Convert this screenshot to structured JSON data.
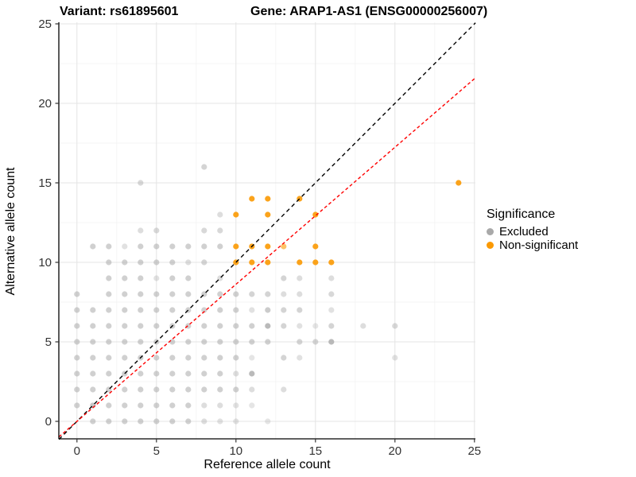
{
  "titles": {
    "variant": "Variant: rs61895601",
    "gene": "Gene: ARAP1-AS1 (ENSG00000256007)"
  },
  "legend": {
    "title": "Significance",
    "items": [
      {
        "label": "Excluded",
        "color": "#A9A9A9"
      },
      {
        "label": "Non-significant",
        "color": "#FB9902"
      }
    ]
  },
  "chart_data": {
    "type": "scatter",
    "xlabel": "Reference allele count",
    "ylabel": "Alternative allele count",
    "xlim": [
      -1.135,
      25.065
    ],
    "ylim": [
      -1.1,
      25.1
    ],
    "x_ticks": [
      0,
      5,
      10,
      15,
      20,
      25
    ],
    "y_ticks": [
      0,
      5,
      10,
      15,
      20,
      25
    ],
    "minor_ticks": [
      2.5,
      7.5,
      12.5,
      17.5,
      22.5
    ],
    "grid": "major+minor",
    "legend_position": "right",
    "series": [
      {
        "name": "Excluded",
        "color": "#A9A9A9",
        "default_alpha": 0.55,
        "points": [
          [
            1,
            0
          ],
          [
            2,
            0
          ],
          [
            3,
            0
          ],
          [
            4,
            0
          ],
          [
            5,
            0
          ],
          [
            6,
            0
          ],
          [
            7,
            0
          ],
          [
            8,
            0,
            0.4
          ],
          [
            9,
            0,
            0.35
          ],
          [
            10,
            0,
            0.35
          ],
          [
            12,
            0,
            0.3
          ],
          [
            0,
            1
          ],
          [
            1,
            1,
            0.65
          ],
          [
            2,
            1
          ],
          [
            3,
            1
          ],
          [
            4,
            1
          ],
          [
            5,
            1
          ],
          [
            6,
            1
          ],
          [
            7,
            1
          ],
          [
            8,
            1,
            0.4
          ],
          [
            9,
            1,
            0.4
          ],
          [
            10,
            1,
            0.35
          ],
          [
            11,
            1,
            0.3
          ],
          [
            0,
            2
          ],
          [
            1,
            2
          ],
          [
            2,
            2
          ],
          [
            3,
            2
          ],
          [
            4,
            2
          ],
          [
            5,
            2
          ],
          [
            6,
            2
          ],
          [
            7,
            2
          ],
          [
            8,
            2
          ],
          [
            9,
            2
          ],
          [
            10,
            2
          ],
          [
            11,
            2,
            0.4
          ],
          [
            13,
            2,
            0.4
          ],
          [
            0,
            3
          ],
          [
            1,
            3
          ],
          [
            2,
            3
          ],
          [
            3,
            3
          ],
          [
            4,
            3
          ],
          [
            5,
            3
          ],
          [
            6,
            3
          ],
          [
            7,
            3
          ],
          [
            8,
            3
          ],
          [
            9,
            3
          ],
          [
            10,
            3,
            0.4
          ],
          [
            11,
            3,
            0.8
          ],
          [
            0,
            4
          ],
          [
            1,
            4
          ],
          [
            2,
            4
          ],
          [
            3,
            4
          ],
          [
            4,
            4
          ],
          [
            5,
            4
          ],
          [
            6,
            4
          ],
          [
            7,
            4
          ],
          [
            8,
            4
          ],
          [
            9,
            4
          ],
          [
            10,
            4
          ],
          [
            11,
            4,
            0.3
          ],
          [
            13,
            4,
            0.5
          ],
          [
            14,
            4,
            0.35
          ],
          [
            20,
            4,
            0.35
          ],
          [
            0,
            5
          ],
          [
            1,
            5
          ],
          [
            2,
            5
          ],
          [
            3,
            5
          ],
          [
            4,
            5
          ],
          [
            5,
            5
          ],
          [
            6,
            5
          ],
          [
            7,
            5
          ],
          [
            8,
            5
          ],
          [
            9,
            5
          ],
          [
            10,
            5
          ],
          [
            11,
            5
          ],
          [
            12,
            5
          ],
          [
            14,
            5,
            0.5
          ],
          [
            15,
            5,
            0.5
          ],
          [
            16,
            5,
            0.8
          ],
          [
            0,
            6
          ],
          [
            1,
            6
          ],
          [
            2,
            6
          ],
          [
            3,
            6
          ],
          [
            4,
            6
          ],
          [
            5,
            6
          ],
          [
            6,
            6
          ],
          [
            7,
            6
          ],
          [
            8,
            6
          ],
          [
            9,
            6
          ],
          [
            10,
            6
          ],
          [
            11,
            6
          ],
          [
            12,
            6,
            0.8
          ],
          [
            13,
            6,
            0.5
          ],
          [
            14,
            6,
            0.35
          ],
          [
            15,
            6,
            0.3
          ],
          [
            16,
            6,
            0.5
          ],
          [
            18,
            6,
            0.4
          ],
          [
            20,
            6,
            0.45
          ],
          [
            0,
            7
          ],
          [
            1,
            7
          ],
          [
            2,
            7
          ],
          [
            3,
            7
          ],
          [
            4,
            7
          ],
          [
            5,
            7
          ],
          [
            6,
            7
          ],
          [
            7,
            7
          ],
          [
            8,
            7
          ],
          [
            9,
            7
          ],
          [
            10,
            7
          ],
          [
            11,
            7,
            0.35
          ],
          [
            12,
            7,
            0.6
          ],
          [
            13,
            7,
            0.5
          ],
          [
            14,
            7,
            0.5
          ],
          [
            16,
            7,
            0.35
          ],
          [
            0,
            8
          ],
          [
            2,
            8
          ],
          [
            3,
            8
          ],
          [
            4,
            8
          ],
          [
            5,
            8
          ],
          [
            6,
            8
          ],
          [
            7,
            8
          ],
          [
            8,
            8
          ],
          [
            9,
            8
          ],
          [
            10,
            8
          ],
          [
            11,
            8,
            0.5
          ],
          [
            12,
            8,
            0.5
          ],
          [
            13,
            8,
            0.4
          ],
          [
            14,
            8,
            0.4
          ],
          [
            16,
            8,
            0.45
          ],
          [
            2,
            9
          ],
          [
            3,
            9
          ],
          [
            4,
            9
          ],
          [
            5,
            9,
            0.35
          ],
          [
            6,
            9
          ],
          [
            7,
            9
          ],
          [
            9,
            9,
            0.4
          ],
          [
            13,
            9,
            0.5
          ],
          [
            14,
            9,
            0.4
          ],
          [
            16,
            9,
            0.4
          ],
          [
            2,
            10
          ],
          [
            3,
            10
          ],
          [
            4,
            10
          ],
          [
            5,
            10
          ],
          [
            6,
            10
          ],
          [
            7,
            10,
            0.4
          ],
          [
            8,
            10,
            0.5
          ],
          [
            1,
            11
          ],
          [
            2,
            11
          ],
          [
            3,
            11,
            0.35
          ],
          [
            4,
            11
          ],
          [
            5,
            11
          ],
          [
            6,
            11
          ],
          [
            7,
            11
          ],
          [
            8,
            11
          ],
          [
            9,
            11
          ],
          [
            4,
            12,
            0.4
          ],
          [
            5,
            12,
            0.45
          ],
          [
            8,
            12,
            0.45
          ],
          [
            9,
            12,
            0.45
          ],
          [
            9,
            13,
            0.4
          ],
          [
            4,
            15,
            0.45
          ],
          [
            8,
            16,
            0.5
          ]
        ]
      },
      {
        "name": "Non-significant",
        "color": "#FB9902",
        "default_alpha": 0.9,
        "points": [
          [
            10,
            10
          ],
          [
            11,
            10
          ],
          [
            12,
            10
          ],
          [
            14,
            10
          ],
          [
            15,
            10
          ],
          [
            16,
            10
          ],
          [
            10,
            11
          ],
          [
            11,
            11
          ],
          [
            12,
            11
          ],
          [
            13,
            11,
            0.6
          ],
          [
            15,
            11
          ],
          [
            10,
            13
          ],
          [
            12,
            13
          ],
          [
            15,
            13
          ],
          [
            11,
            14
          ],
          [
            12,
            14
          ],
          [
            14,
            14
          ],
          [
            24,
            15
          ]
        ]
      }
    ],
    "lines": [
      {
        "name": "identity-line",
        "color": "#000000",
        "dash": [
          5,
          4
        ],
        "x1": -1.135,
        "y1": -1.135,
        "x2": 25.065,
        "y2": 25.065
      },
      {
        "name": "expected-ratio-line",
        "color": "#FF0000",
        "dash": [
          4,
          3
        ],
        "x1": -1.135,
        "y1": -0.978,
        "x2": 25.065,
        "y2": 21.606
      }
    ]
  }
}
